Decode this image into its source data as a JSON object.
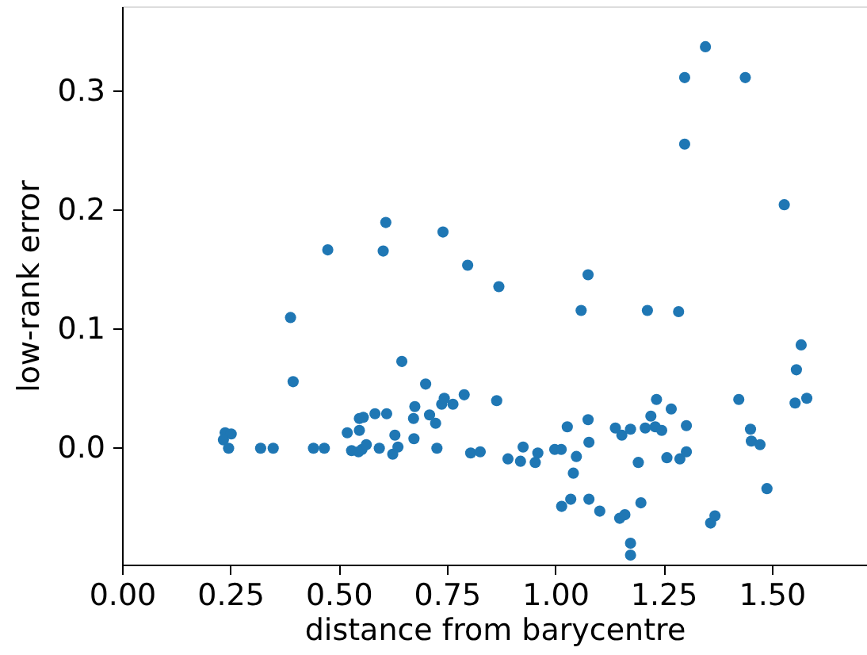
{
  "chart_data": {
    "type": "scatter",
    "xlabel": "distance from barycentre",
    "ylabel": "low-rank error",
    "xlim": [
      0,
      1.72
    ],
    "ylim": [
      -0.099,
      0.371
    ],
    "xticks": [
      {
        "value": 0,
        "label": "0.00"
      },
      {
        "value": 0.25,
        "label": "0.25"
      },
      {
        "value": 0.5,
        "label": "0.50"
      },
      {
        "value": 0.75,
        "label": "0.75"
      },
      {
        "value": 1,
        "label": "1.00"
      },
      {
        "value": 1.25,
        "label": "1.25"
      },
      {
        "value": 1.5,
        "label": "1.50"
      }
    ],
    "yticks": [
      {
        "value": 0,
        "label": "0.0"
      },
      {
        "value": 0.1,
        "label": "0.1"
      },
      0.2,
      0.3
    ],
    "grid": false,
    "marker": "circle",
    "series": [
      {
        "color": "#1f77b4",
        "x": [
          0.389,
          0.395,
          0.238,
          0.252,
          0.234,
          0.246,
          0.32,
          0.349,
          0.442,
          0.467,
          0.52,
          0.548,
          0.548,
          0.557,
          0.584,
          0.611,
          0.53,
          0.546,
          0.554,
          0.564,
          0.594,
          0.625,
          0.63,
          0.637,
          0.646,
          0.673,
          0.676,
          0.674,
          0.701,
          0.71,
          0.724,
          0.727,
          0.738,
          0.744,
          0.764,
          0.79,
          0.805,
          0.827,
          0.865,
          0.609,
          0.475,
          0.603,
          0.741,
          0.798,
          0.87,
          1.347,
          1.299,
          1.439,
          1.299,
          1.529,
          1.076,
          1.06,
          1.213,
          1.285,
          1.568,
          1.557,
          1.424,
          1.554,
          1.581,
          1.234,
          1.268,
          1.221,
          1.076,
          1.028,
          1.139,
          1.154,
          1.174,
          1.208,
          1.231,
          1.246,
          1.303,
          1.451,
          1.453,
          1.473,
          1.078,
          0.926,
          0.96,
          0.891,
          0.92,
          0.954,
          0.999,
          1.014,
          1.049,
          1.042,
          1.192,
          1.258,
          1.288,
          1.303,
          1.015,
          1.036,
          1.078,
          1.103,
          1.198,
          1.149,
          1.161,
          1.174,
          1.174,
          1.359,
          1.369,
          1.489
        ],
        "values": [
          0.109,
          0.055,
          0.012,
          0.011,
          0.006,
          -0.001,
          -0.001,
          -0.001,
          -0.001,
          -0.001,
          0.012,
          0.014,
          0.024,
          0.025,
          0.028,
          0.028,
          -0.003,
          -0.004,
          -0.002,
          0.002,
          -0.001,
          -0.006,
          0.01,
          0.0,
          0.072,
          0.024,
          0.034,
          0.007,
          0.053,
          0.027,
          0.02,
          -0.001,
          0.036,
          0.041,
          0.036,
          0.044,
          -0.005,
          -0.004,
          0.039,
          0.189,
          0.166,
          0.165,
          0.181,
          0.153,
          0.135,
          0.337,
          0.311,
          0.311,
          0.255,
          0.204,
          0.145,
          0.115,
          0.115,
          0.114,
          0.086,
          0.065,
          0.04,
          0.037,
          0.041,
          0.04,
          0.032,
          0.026,
          0.023,
          0.017,
          0.016,
          0.01,
          0.015,
          0.016,
          0.017,
          0.014,
          0.018,
          0.015,
          0.005,
          0.002,
          0.004,
          0.0,
          -0.005,
          -0.01,
          -0.012,
          -0.013,
          -0.002,
          -0.002,
          -0.008,
          -0.022,
          -0.013,
          -0.009,
          -0.01,
          -0.004,
          -0.05,
          -0.044,
          -0.044,
          -0.054,
          -0.047,
          -0.06,
          -0.057,
          -0.081,
          -0.091,
          -0.064,
          -0.058,
          -0.035
        ]
      }
    ]
  }
}
